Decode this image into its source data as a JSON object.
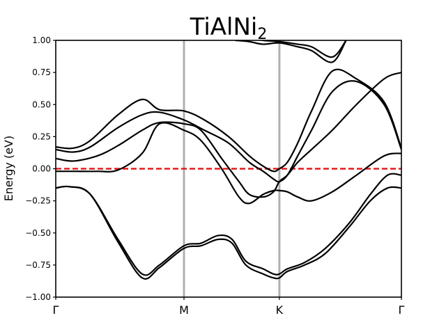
{
  "chart_data": {
    "type": "line",
    "title": "TiAlNi",
    "title_subscript": "2",
    "xlabel": "",
    "ylabel": "Energy (eV)",
    "ylim": [
      -1.0,
      1.0
    ],
    "xlim": [
      0,
      1
    ],
    "yticks": [
      -1.0,
      -0.75,
      -0.5,
      -0.25,
      0.0,
      0.25,
      0.5,
      0.75,
      1.0
    ],
    "ytick_labels": [
      "−1.00",
      "−0.75",
      "−0.50",
      "−0.25",
      "0.00",
      "0.25",
      "0.50",
      "0.75",
      "1.00"
    ],
    "high_symmetry_points": [
      {
        "label": "Γ",
        "x": 0.0
      },
      {
        "label": "M",
        "x": 0.371
      },
      {
        "label": "K",
        "x": 0.647
      },
      {
        "label": "Γ",
        "x": 1.0
      }
    ],
    "fermi_level": {
      "y": 0.0,
      "color": "#e41a1c",
      "style": "dashed"
    },
    "symmetry_line_color": "#b0b0b0",
    "band_color": "#000000",
    "grid": false,
    "series": [
      {
        "x": [
          0.0,
          0.04,
          0.1,
          0.18,
          0.25,
          0.3,
          0.371,
          0.42,
          0.47,
          0.51,
          0.55,
          0.6,
          0.63,
          0.647,
          0.67,
          0.72,
          0.78,
          0.85,
          0.91,
          0.96,
          1.0
        ],
        "values": [
          -0.15,
          -0.14,
          -0.2,
          -0.55,
          -0.82,
          -0.75,
          -0.6,
          -0.58,
          -0.52,
          -0.55,
          -0.72,
          -0.78,
          -0.82,
          -0.82,
          -0.78,
          -0.73,
          -0.62,
          -0.42,
          -0.2,
          -0.05,
          -0.05
        ]
      },
      {
        "x": [
          0.0,
          0.04,
          0.1,
          0.18,
          0.25,
          0.3,
          0.371,
          0.42,
          0.47,
          0.51,
          0.55,
          0.6,
          0.63,
          0.647,
          0.67,
          0.72,
          0.78,
          0.85,
          0.91,
          0.96,
          1.0
        ],
        "values": [
          -0.15,
          -0.14,
          -0.2,
          -0.57,
          -0.85,
          -0.77,
          -0.62,
          -0.6,
          -0.55,
          -0.58,
          -0.75,
          -0.82,
          -0.85,
          -0.85,
          -0.8,
          -0.75,
          -0.66,
          -0.45,
          -0.25,
          -0.15,
          -0.15
        ]
      },
      {
        "x": [
          0.0,
          0.05,
          0.12,
          0.18,
          0.25,
          0.3,
          0.371,
          0.42,
          0.48,
          0.53,
          0.56,
          0.6,
          0.63,
          0.647,
          0.67,
          0.7,
          0.74,
          0.8,
          0.87,
          0.95,
          1.0
        ],
        "values": [
          -0.02,
          -0.02,
          -0.02,
          -0.01,
          0.12,
          0.35,
          0.3,
          0.22,
          0.0,
          -0.22,
          -0.27,
          -0.2,
          -0.17,
          -0.17,
          -0.18,
          -0.22,
          -0.25,
          -0.18,
          -0.05,
          0.1,
          0.12
        ]
      },
      {
        "x": [
          0.0,
          0.05,
          0.12,
          0.18,
          0.25,
          0.3,
          0.371,
          0.42,
          0.48,
          0.53,
          0.56,
          0.6,
          0.63,
          0.647,
          0.67,
          0.7,
          0.74,
          0.8,
          0.87,
          0.95,
          1.0
        ],
        "values": [
          0.08,
          0.06,
          0.1,
          0.18,
          0.3,
          0.36,
          0.35,
          0.3,
          0.08,
          -0.1,
          -0.2,
          -0.22,
          -0.18,
          -0.1,
          -0.05,
          0.05,
          0.15,
          0.3,
          0.5,
          0.7,
          0.75
        ]
      },
      {
        "x": [
          0.0,
          0.05,
          0.1,
          0.18,
          0.25,
          0.3,
          0.371,
          0.43,
          0.5,
          0.56,
          0.6,
          0.63,
          0.647,
          0.67,
          0.7,
          0.74,
          0.8,
          0.87,
          0.95,
          1.0
        ],
        "values": [
          0.15,
          0.13,
          0.17,
          0.32,
          0.42,
          0.44,
          0.38,
          0.3,
          0.2,
          0.05,
          -0.02,
          -0.08,
          -0.1,
          -0.05,
          0.1,
          0.3,
          0.6,
          0.68,
          0.5,
          0.15
        ]
      },
      {
        "x": [
          0.0,
          0.05,
          0.1,
          0.18,
          0.25,
          0.3,
          0.371,
          0.43,
          0.5,
          0.56,
          0.6,
          0.63,
          0.647,
          0.67,
          0.7,
          0.74,
          0.8,
          0.87,
          0.95,
          1.0
        ],
        "values": [
          0.17,
          0.16,
          0.22,
          0.42,
          0.54,
          0.46,
          0.45,
          0.38,
          0.25,
          0.1,
          0.02,
          -0.02,
          0.0,
          0.05,
          0.2,
          0.45,
          0.76,
          0.7,
          0.52,
          0.16
        ]
      },
      {
        "x": [
          0.52,
          0.56,
          0.6,
          0.647,
          0.7,
          0.74,
          0.8,
          0.84
        ],
        "values": [
          1.0,
          0.99,
          0.97,
          0.98,
          0.95,
          0.92,
          0.83,
          1.0
        ]
      },
      {
        "x": [
          0.56,
          0.6,
          0.647,
          0.7,
          0.74,
          0.8,
          0.84
        ],
        "values": [
          1.02,
          1.0,
          0.99,
          0.97,
          0.95,
          0.87,
          1.0
        ]
      }
    ]
  }
}
